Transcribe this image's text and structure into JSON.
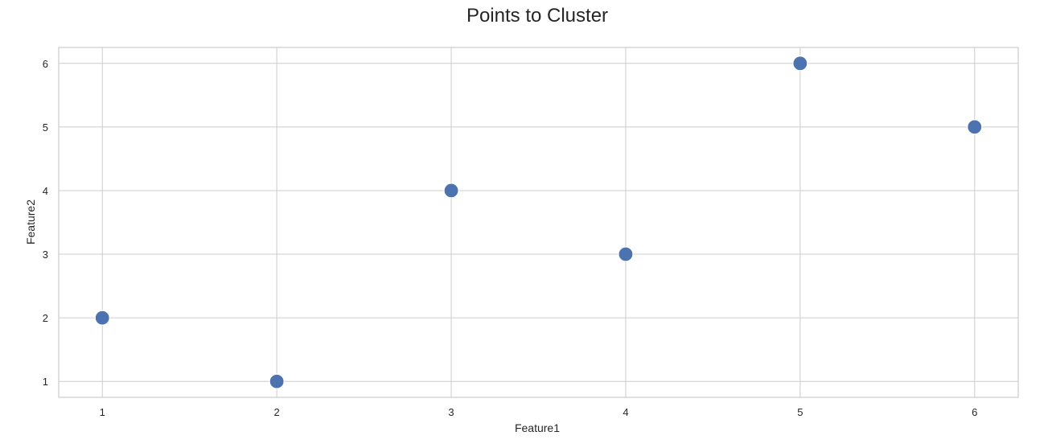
{
  "chart_data": {
    "type": "scatter",
    "title": "Points to Cluster",
    "xlabel": "Feature1",
    "ylabel": "Feature2",
    "x": [
      1,
      2,
      3,
      4,
      5,
      6
    ],
    "y": [
      2,
      1,
      4,
      3,
      6,
      5
    ],
    "xlim": [
      0.75,
      6.25
    ],
    "ylim": [
      0.75,
      6.25
    ],
    "xticks": [
      1,
      2,
      3,
      4,
      5,
      6
    ],
    "yticks": [
      1,
      2,
      3,
      4,
      5,
      6
    ],
    "x_tick_labels": [
      "1",
      "2",
      "3",
      "4",
      "5",
      "6"
    ],
    "y_tick_labels": [
      "1",
      "2",
      "3",
      "4",
      "5",
      "6"
    ],
    "grid": true,
    "legend": false,
    "colors": {
      "point": "#4c72b0",
      "grid": "#cccccc",
      "frame": "#cccccc",
      "text": "#262626",
      "background": "#ffffff"
    }
  }
}
